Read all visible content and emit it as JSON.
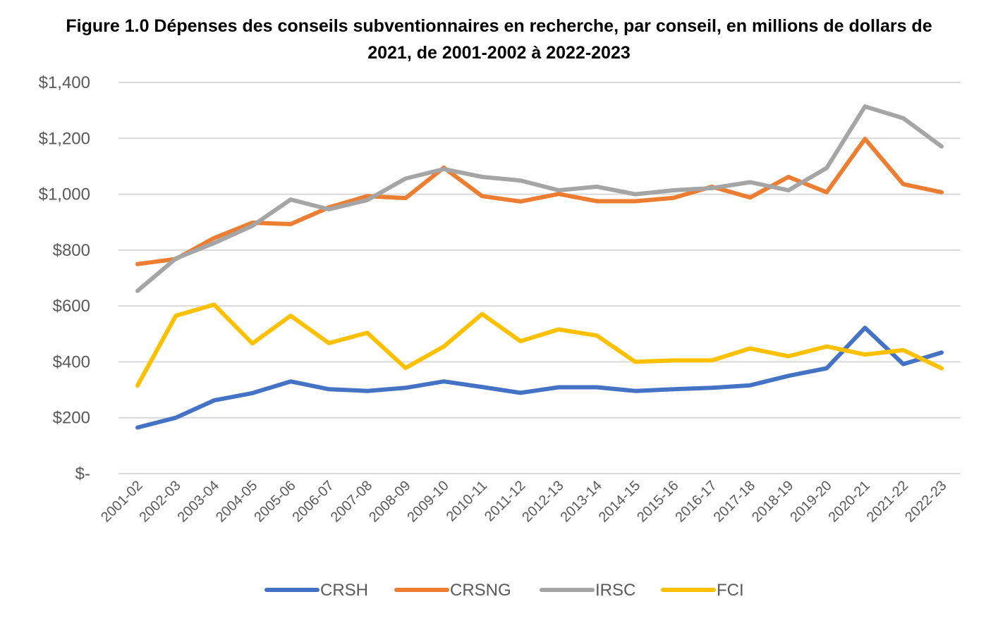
{
  "title_line1": "Figure 1.0 Dépenses des conseils subventionnaires en recherche, par conseil, en millions de dollars de",
  "title_line2": "2021, de 2001-2002 à 2022-2023",
  "chart_data": {
    "type": "line",
    "title": "Figure 1.0 Dépenses des conseils subventionnaires en recherche, par conseil, en millions de dollars de 2021, de 2001-2002 à 2022-2023",
    "xlabel": "",
    "ylabel": "",
    "ylim": [
      0,
      1400
    ],
    "yticks": [
      0,
      200,
      400,
      600,
      800,
      1000,
      1200,
      1400
    ],
    "ytick_labels": [
      "$-",
      "$200",
      "$400",
      "$600",
      "$800",
      "$1,000",
      "$1,200",
      "$1,400"
    ],
    "grid": true,
    "legend_position": "bottom",
    "categories": [
      "2001-02",
      "2002-03",
      "2003-04",
      "2004-05",
      "2005-06",
      "2006-07",
      "2007-08",
      "2008-09",
      "2009-10",
      "2010-11",
      "2011-12",
      "2012-13",
      "2013-14",
      "2014-15",
      "2015-16",
      "2016-17",
      "2017-18",
      "2018-19",
      "2019-20",
      "2020-21",
      "2021-22",
      "2022-23"
    ],
    "series": [
      {
        "name": "CRSH",
        "color": "#4472C4",
        "values": [
          165,
          200,
          262,
          288,
          330,
          302,
          296,
          307,
          330,
          310,
          289,
          309,
          309,
          296,
          302,
          307,
          316,
          350,
          377,
          522,
          392,
          433
        ]
      },
      {
        "name": "CRSNG",
        "color": "#ED7D31",
        "values": [
          750,
          768,
          843,
          898,
          893,
          953,
          993,
          986,
          1095,
          993,
          974,
          1001,
          975,
          975,
          987,
          1027,
          988,
          1062,
          1007,
          1198,
          1036,
          1007
        ]
      },
      {
        "name": "IRSC",
        "color": "#A5A5A5",
        "values": [
          654,
          770,
          825,
          887,
          981,
          946,
          979,
          1056,
          1090,
          1062,
          1049,
          1014,
          1027,
          1000,
          1014,
          1022,
          1043,
          1014,
          1094,
          1314,
          1272,
          1171
        ]
      },
      {
        "name": "FCI",
        "color": "#FFC000",
        "values": [
          315,
          565,
          605,
          466,
          565,
          467,
          504,
          378,
          455,
          571,
          474,
          516,
          494,
          400,
          405,
          405,
          448,
          420,
          455,
          426,
          442,
          377
        ]
      }
    ]
  }
}
